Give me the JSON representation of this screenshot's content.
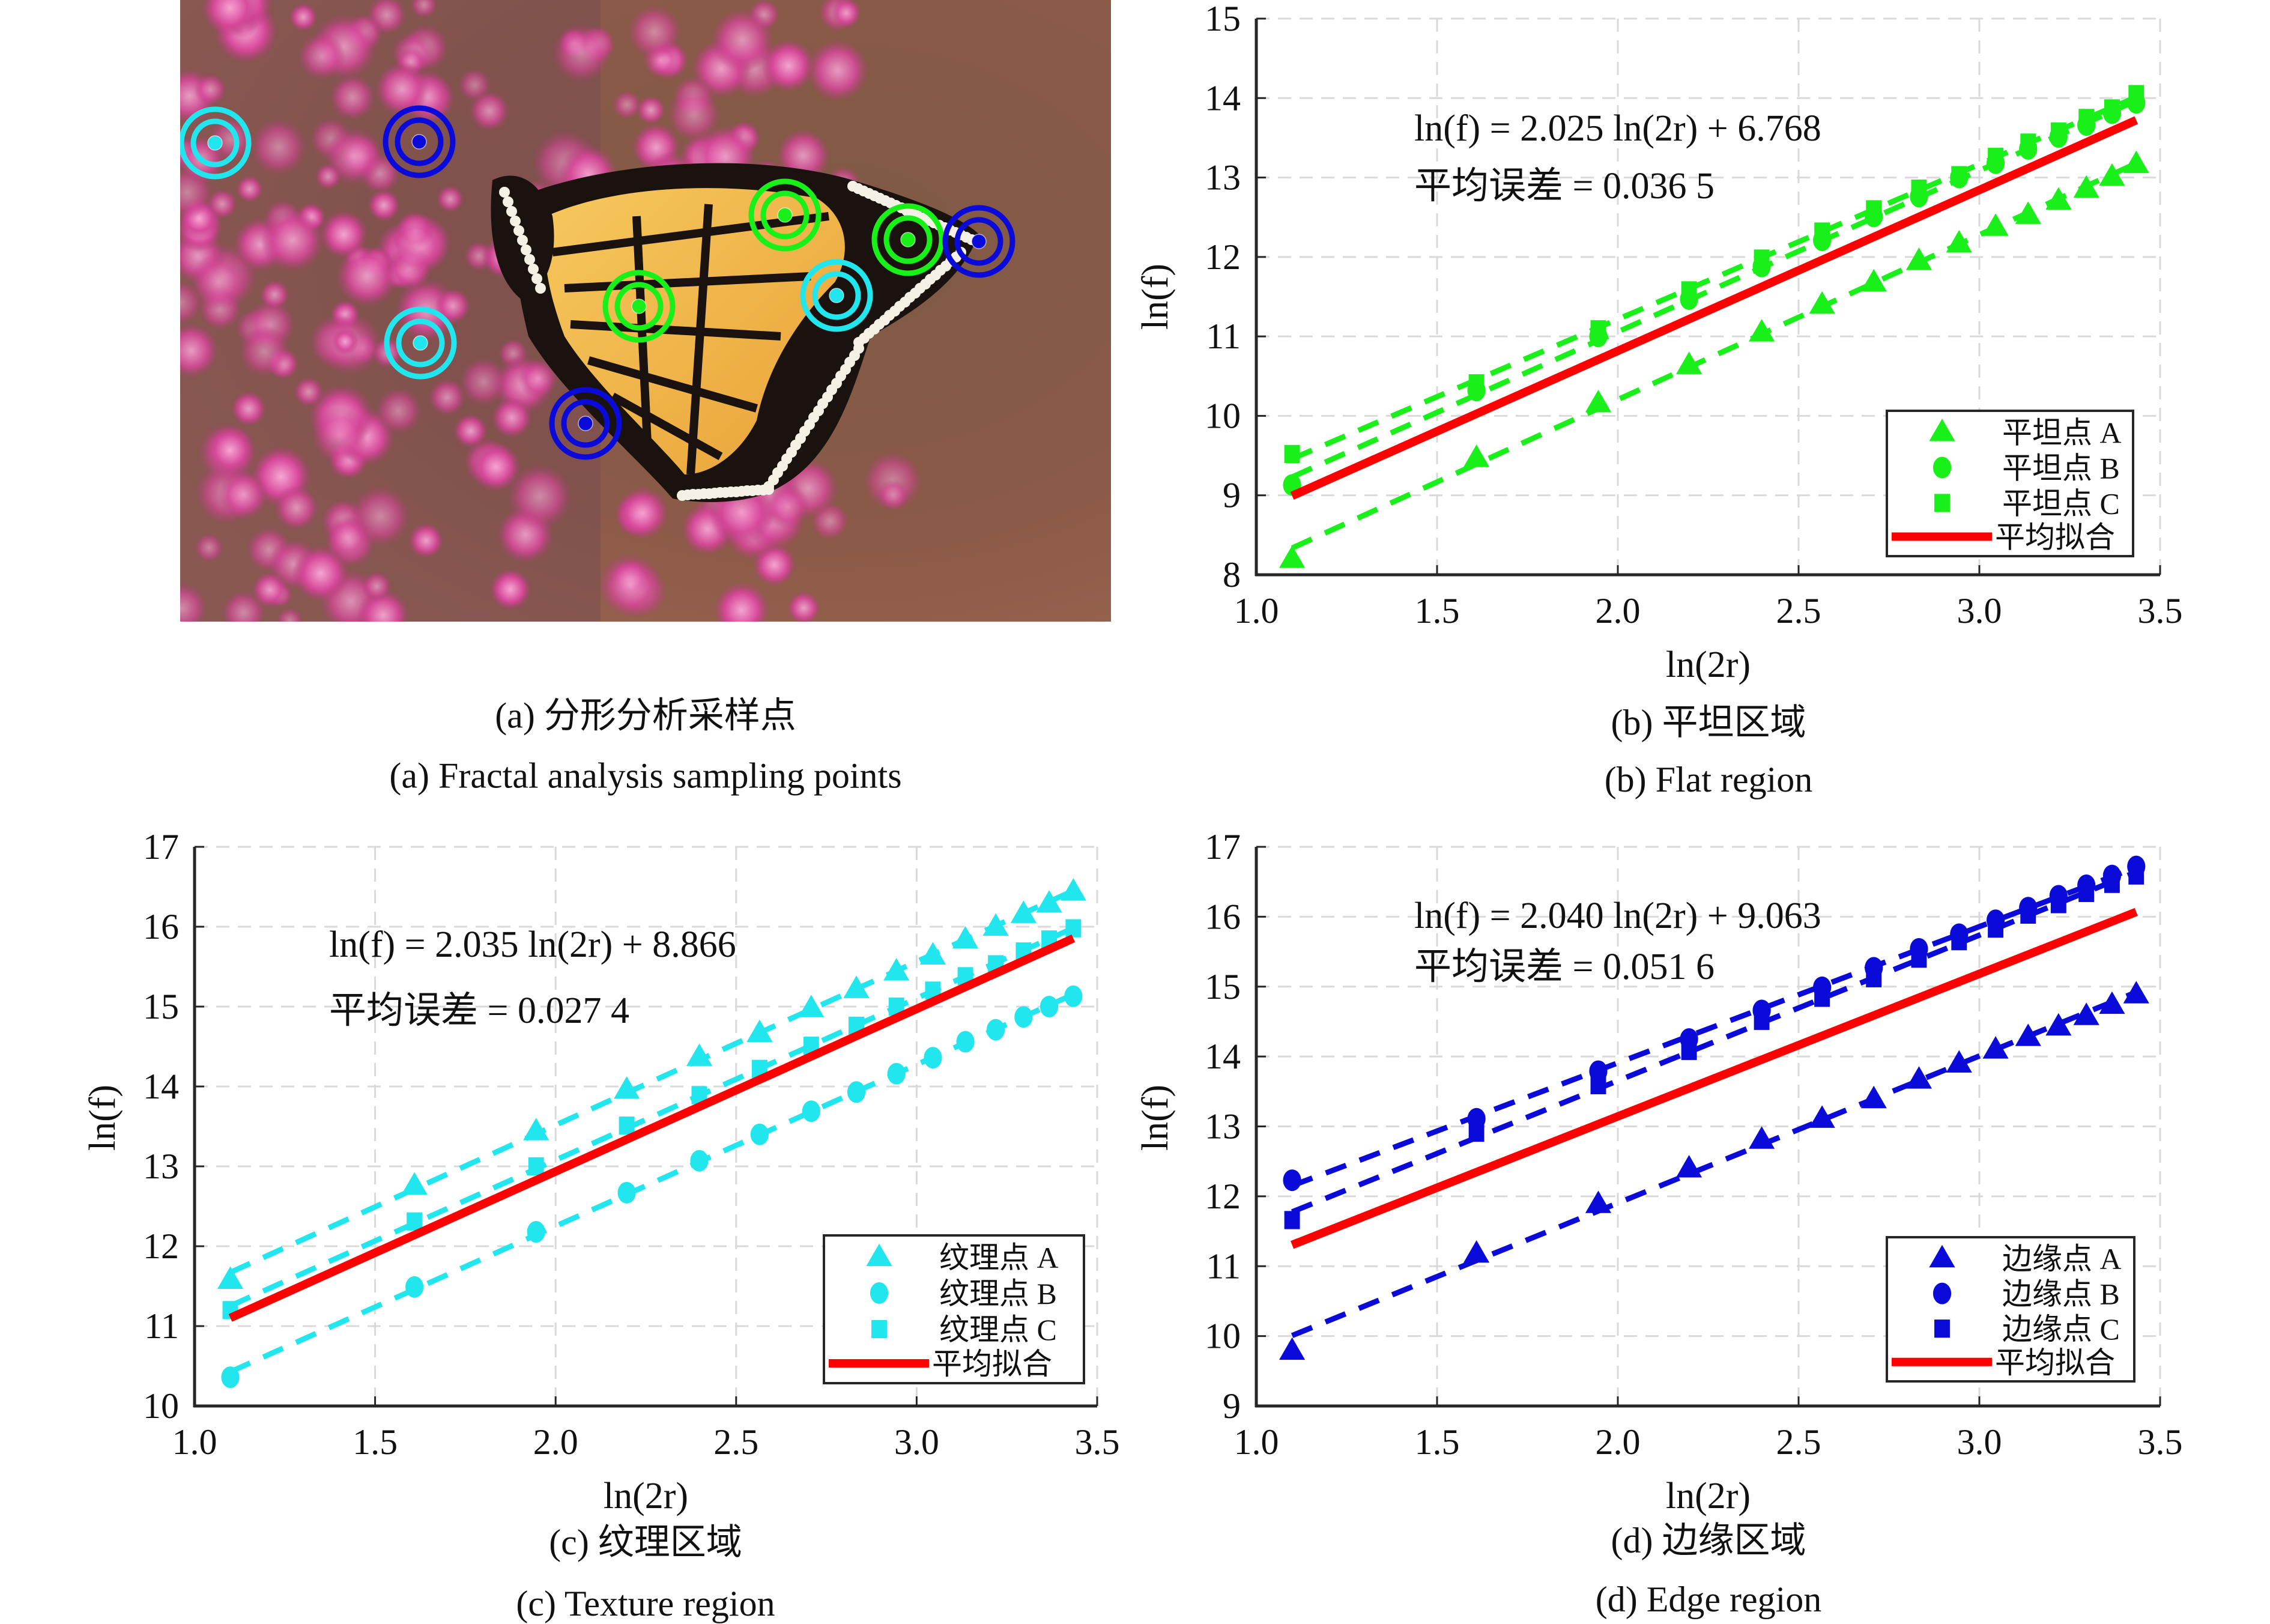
{
  "figure": {
    "panel_a": {
      "caption_cn": "(a) 分形分析采样点",
      "caption_en": "(a) Fractal analysis sampling points",
      "sampling_points": [
        {
          "region": "texture",
          "color": "#22e6ee"
        },
        {
          "region": "edge",
          "color": "#0b0bd9"
        },
        {
          "region": "flat",
          "color": "#19f019"
        },
        {
          "region": "flat",
          "color": "#19f019"
        },
        {
          "region": "edge",
          "color": "#0b0bd9"
        },
        {
          "region": "flat",
          "color": "#19f019"
        },
        {
          "region": "texture",
          "color": "#22e6ee"
        },
        {
          "region": "texture",
          "color": "#22e6ee"
        },
        {
          "region": "edge",
          "color": "#0b0bd9"
        }
      ]
    }
  },
  "chart_data": [
    {
      "id": "b",
      "type": "scatter",
      "caption_cn": "(b) 平坦区域",
      "caption_en": "(b) Flat region",
      "xlabel": "ln(2r)",
      "ylabel": "ln(f)",
      "xlim": [
        1.0,
        3.5
      ],
      "ylim": [
        8,
        15
      ],
      "xticks": [
        "1.0",
        "1.5",
        "2.0",
        "2.5",
        "3.0",
        "3.5"
      ],
      "yticks": [
        "8",
        "9",
        "10",
        "11",
        "12",
        "13",
        "14",
        "15"
      ],
      "grid": true,
      "equation": "ln(f) = 2.025 ln(2r) + 6.768",
      "error_label": "平均误差 = 0.036 5",
      "legend_position": "bottom-right",
      "color": "#19f019",
      "fit": {
        "name": "平均拟合",
        "slope": 2.025,
        "intercept": 6.768,
        "color": "#ff0000"
      },
      "x": [
        1.099,
        1.609,
        1.946,
        2.197,
        2.398,
        2.565,
        2.708,
        2.833,
        2.944,
        3.045,
        3.135,
        3.219,
        3.296,
        3.367,
        3.434
      ],
      "series": [
        {
          "name": "平坦点 A",
          "marker": "triangle",
          "values": [
            8.2,
            9.47,
            10.16,
            10.64,
            11.05,
            11.4,
            11.68,
            11.95,
            12.17,
            12.38,
            12.53,
            12.71,
            12.86,
            13.01,
            13.17
          ]
        },
        {
          "name": "平坦点 B",
          "marker": "circle",
          "values": [
            9.13,
            10.32,
            11.0,
            11.47,
            11.88,
            12.21,
            12.51,
            12.76,
            13.0,
            13.18,
            13.36,
            13.51,
            13.66,
            13.81,
            13.94
          ]
        },
        {
          "name": "平坦点 C",
          "marker": "square",
          "values": [
            9.52,
            10.41,
            11.09,
            11.58,
            11.98,
            12.32,
            12.6,
            12.86,
            13.03,
            13.26,
            13.44,
            13.58,
            13.75,
            13.87,
            14.05
          ]
        }
      ]
    },
    {
      "id": "c",
      "type": "scatter",
      "caption_cn": "(c) 纹理区域",
      "caption_en": "(c) Texture region",
      "xlabel": "ln(2r)",
      "ylabel": "ln(f)",
      "xlim": [
        1.0,
        3.5
      ],
      "ylim": [
        10,
        17
      ],
      "xticks": [
        "1.0",
        "1.5",
        "2.0",
        "2.5",
        "3.0",
        "3.5"
      ],
      "yticks": [
        "10",
        "11",
        "12",
        "13",
        "14",
        "15",
        "16",
        "17"
      ],
      "grid": true,
      "equation": "ln(f) = 2.035 ln(2r) + 8.866",
      "error_label": "平均误差 = 0.027 4",
      "legend_position": "bottom-right",
      "color": "#22e6ee",
      "fit": {
        "name": "平均拟合",
        "slope": 2.035,
        "intercept": 8.866,
        "color": "#ff0000"
      },
      "x": [
        1.099,
        1.609,
        1.946,
        2.197,
        2.398,
        2.565,
        2.708,
        2.833,
        2.944,
        3.045,
        3.135,
        3.219,
        3.296,
        3.367,
        3.434
      ],
      "series": [
        {
          "name": "纹理点 A",
          "marker": "triangle",
          "values": [
            11.58,
            12.76,
            13.44,
            13.96,
            14.37,
            14.67,
            14.98,
            15.22,
            15.44,
            15.64,
            15.84,
            16.0,
            16.16,
            16.29,
            16.44
          ]
        },
        {
          "name": "纹理点 B",
          "marker": "circle",
          "values": [
            10.36,
            11.49,
            12.18,
            12.67,
            13.07,
            13.4,
            13.69,
            13.93,
            14.16,
            14.36,
            14.56,
            14.71,
            14.87,
            15.0,
            15.13
          ]
        },
        {
          "name": "纹理点 C",
          "marker": "square",
          "values": [
            11.2,
            12.31,
            13.0,
            13.51,
            13.89,
            14.22,
            14.51,
            14.76,
            15.0,
            15.2,
            15.38,
            15.53,
            15.69,
            15.84,
            15.98
          ]
        }
      ]
    },
    {
      "id": "d",
      "type": "scatter",
      "caption_cn": "(d) 边缘区域",
      "caption_en": "(d) Edge region",
      "xlabel": "ln(2r)",
      "ylabel": "ln(f)",
      "xlim": [
        1.0,
        3.5
      ],
      "ylim": [
        9,
        17
      ],
      "xticks": [
        "1.0",
        "1.5",
        "2.0",
        "2.5",
        "3.0",
        "3.5"
      ],
      "yticks": [
        "9",
        "10",
        "11",
        "12",
        "13",
        "14",
        "15",
        "16",
        "17"
      ],
      "grid": true,
      "equation": "ln(f) = 2.040 ln(2r) + 9.063",
      "error_label": "平均误差 = 0.051 6",
      "legend_position": "bottom-right",
      "color": "#0b0bd9",
      "fit": {
        "name": "平均拟合",
        "slope": 2.04,
        "intercept": 9.063,
        "color": "#ff0000"
      },
      "x": [
        1.099,
        1.609,
        1.946,
        2.197,
        2.398,
        2.565,
        2.708,
        2.833,
        2.944,
        3.045,
        3.135,
        3.219,
        3.296,
        3.367,
        3.434
      ],
      "series": [
        {
          "name": "边缘点 A",
          "marker": "triangle",
          "values": [
            9.79,
            11.18,
            11.89,
            12.4,
            12.81,
            13.11,
            13.39,
            13.67,
            13.9,
            14.1,
            14.28,
            14.43,
            14.58,
            14.74,
            14.89
          ]
        },
        {
          "name": "边缘点 B",
          "marker": "circle",
          "values": [
            12.23,
            13.11,
            13.79,
            14.25,
            14.66,
            14.99,
            15.27,
            15.54,
            15.75,
            15.95,
            16.13,
            16.3,
            16.45,
            16.59,
            16.72
          ]
        },
        {
          "name": "边缘点 C",
          "marker": "square",
          "values": [
            11.66,
            12.91,
            13.59,
            14.08,
            14.51,
            14.84,
            15.12,
            15.4,
            15.65,
            15.83,
            16.03,
            16.18,
            16.34,
            16.47,
            16.59
          ]
        }
      ]
    }
  ]
}
